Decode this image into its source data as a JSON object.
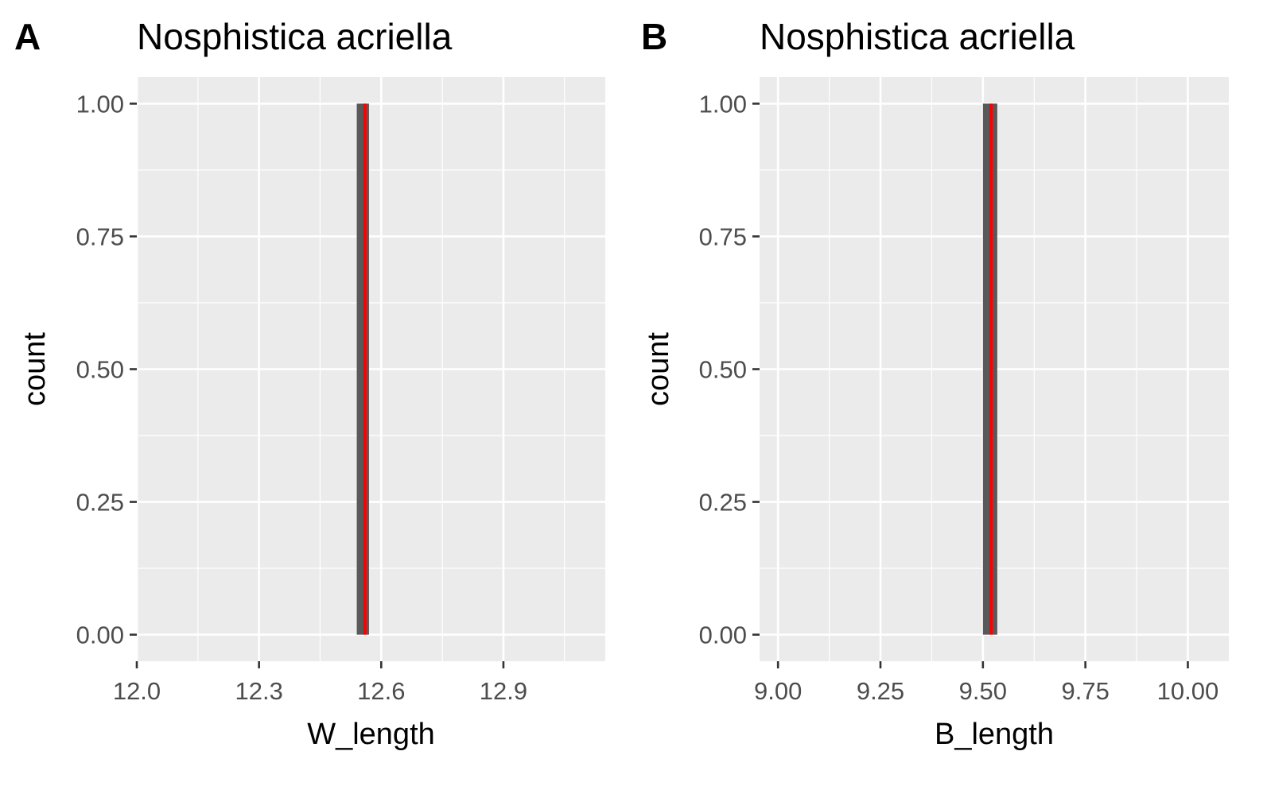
{
  "chart_data": [
    {
      "panel_letter": "A",
      "type": "bar",
      "subtype": "histogram",
      "title": "Nosphistica acriella",
      "xlabel": "W_length",
      "ylabel": "count",
      "xlim": [
        12.0,
        13.15
      ],
      "ylim": [
        -0.05,
        1.05
      ],
      "x_ticks": [
        12.0,
        12.3,
        12.6,
        12.9
      ],
      "x_tick_labels": [
        "12.0",
        "12.3",
        "12.6",
        "12.9"
      ],
      "y_ticks": [
        0.0,
        0.25,
        0.5,
        0.75,
        1.0
      ],
      "y_tick_labels": [
        "0.00",
        "0.25",
        "0.50",
        "0.75",
        "1.00"
      ],
      "bars": [
        {
          "x_start": 12.54,
          "x_end": 12.57,
          "count": 1
        }
      ],
      "vline": {
        "x": 12.56,
        "color": "#ff0000"
      },
      "bar_color": "#595959",
      "panel_bg": "#ebebeb",
      "grid": true,
      "legend": "none"
    },
    {
      "panel_letter": "B",
      "type": "bar",
      "subtype": "histogram",
      "title": "Nosphistica acriella",
      "xlabel": "B_length",
      "ylabel": "count",
      "xlim": [
        8.955,
        10.1
      ],
      "ylim": [
        -0.05,
        1.05
      ],
      "x_ticks": [
        9.0,
        9.25,
        9.5,
        9.75,
        10.0
      ],
      "x_tick_labels": [
        "9.00",
        "9.25",
        "9.50",
        "9.75",
        "10.00"
      ],
      "y_ticks": [
        0.0,
        0.25,
        0.5,
        0.75,
        1.0
      ],
      "y_tick_labels": [
        "0.00",
        "0.25",
        "0.50",
        "0.75",
        "1.00"
      ],
      "bars": [
        {
          "x_start": 9.5,
          "x_end": 9.535,
          "count": 1
        }
      ],
      "vline": {
        "x": 9.52,
        "color": "#ff0000"
      },
      "bar_color": "#595959",
      "panel_bg": "#ebebeb",
      "grid": true,
      "legend": "none"
    }
  ]
}
